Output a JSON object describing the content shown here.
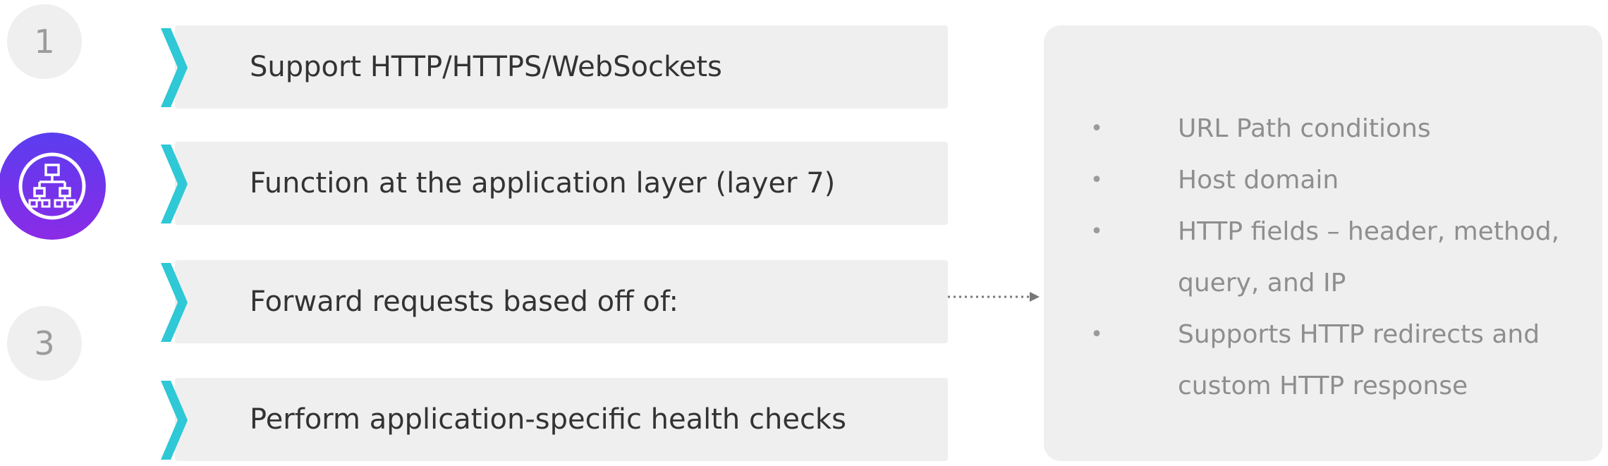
{
  "steps": [
    {
      "number": "1",
      "state": "inactive"
    },
    {
      "number": "",
      "state": "active",
      "icon": "network-hierarchy-icon"
    },
    {
      "number": "3",
      "state": "inactive"
    }
  ],
  "rows": [
    {
      "text": "Support HTTP/HTTPS/WebSockets"
    },
    {
      "text": "Function at the application layer (layer 7)"
    },
    {
      "text": "Forward requests based off of:"
    },
    {
      "text": "Perform application-specific health checks"
    }
  ],
  "panel": {
    "bullets": [
      "URL Path conditions",
      "Host domain",
      "HTTP fields – header, method, query, and IP",
      "Supports HTTP redirects and custom HTTP response"
    ]
  },
  "colors": {
    "accent_gradient_start": "#5b3df0",
    "accent_gradient_end": "#8a2be6",
    "chevron": "#2ec8d6",
    "box": "#efefef",
    "text": "#333333",
    "muted_text": "#8e8e8e"
  }
}
